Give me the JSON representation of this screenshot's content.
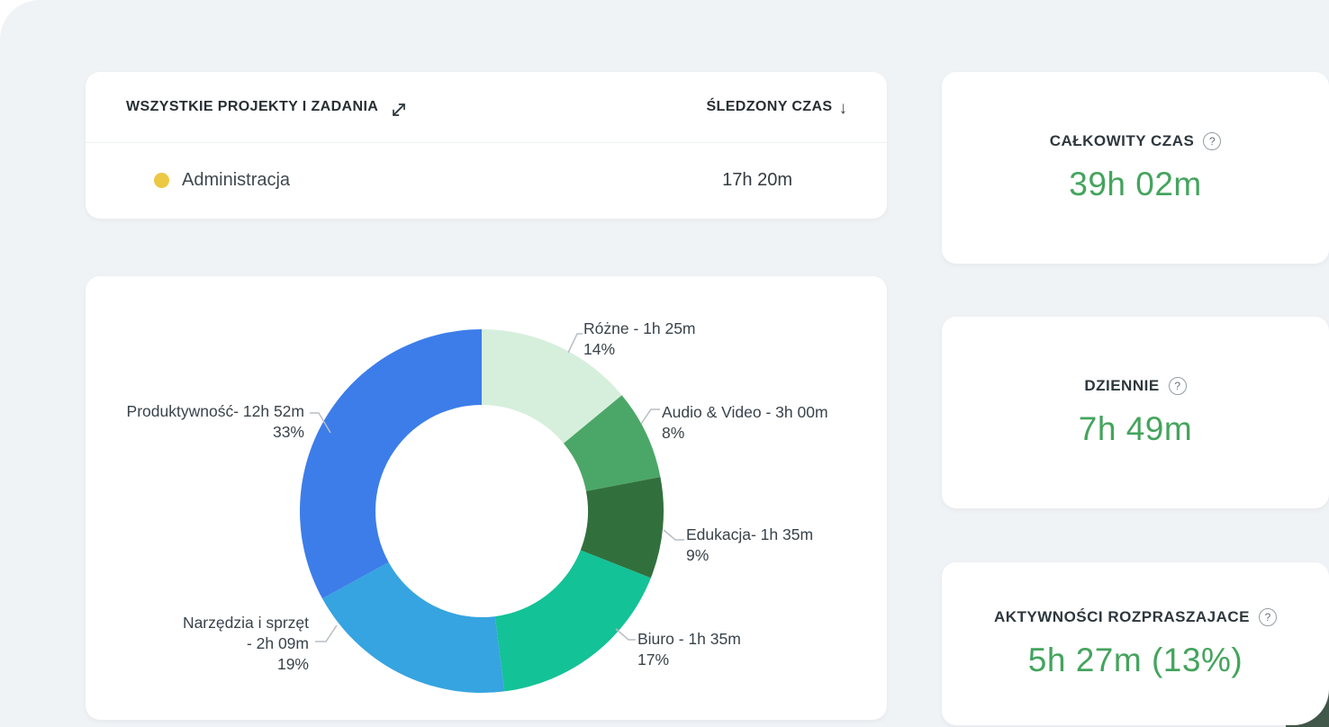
{
  "panel": {
    "background": "#f0f3f6",
    "corner_accent_color": "#42584a"
  },
  "projects_card": {
    "title": "WSZYSTKIE PROJEKTY I ZADANIA",
    "column_time": "ŚLEDZONY CZAS",
    "sort_icon": "↓",
    "rows": [
      {
        "name": "Administracja",
        "time": "17h 20m",
        "dot_color": "#ecc843"
      }
    ]
  },
  "stats_cards": [
    {
      "label": "CAŁKOWITY CZAS",
      "value": "39h 02m",
      "help_icon": "?"
    },
    {
      "label": "DZIENNIE",
      "value": "7h 49m",
      "help_icon": "?"
    },
    {
      "label": "AKTYWNOŚCI ROZPRASZAJACE",
      "value": "5h 27m (13%)",
      "help_icon": "?"
    }
  ],
  "value_color": "#44a45d",
  "chart_data": {
    "type": "pie",
    "donut": true,
    "start_angle_deg": 0,
    "direction": "clockwise",
    "legend_position": "callout-labels",
    "title": "",
    "segments": [
      {
        "name": "Różne",
        "time": "1h 25m",
        "percent": 14,
        "color": "#d6efdc",
        "label_lines": [
          "Różne - 1h 25m",
          "14%"
        ]
      },
      {
        "name": "Audio & Video",
        "time": "3h 00m",
        "percent": 8,
        "color": "#4ba767",
        "label_lines": [
          "Audio & Video - 3h 00m",
          "8%"
        ]
      },
      {
        "name": "Edukacja",
        "time": "1h 35m",
        "percent": 9,
        "color": "#31703d",
        "label_lines": [
          "Edukacja- 1h 35m",
          "9%"
        ]
      },
      {
        "name": "Biuro",
        "time": "1h 35m",
        "percent": 17,
        "color": "#13c296",
        "label_lines": [
          "Biuro - 1h 35m",
          "17%"
        ]
      },
      {
        "name": "Narzędzia i sprzęt",
        "time": "2h 09m",
        "percent": 19,
        "color": "#36a4e0",
        "label_lines": [
          "Narzędzia i sprzęt",
          "- 2h 09m",
          "19%"
        ]
      },
      {
        "name": "Produktywność",
        "time": "12h 52m",
        "percent": 33,
        "color": "#3d7de9",
        "label_lines": [
          "Produktywność- 12h 52m",
          "33%"
        ]
      }
    ]
  }
}
